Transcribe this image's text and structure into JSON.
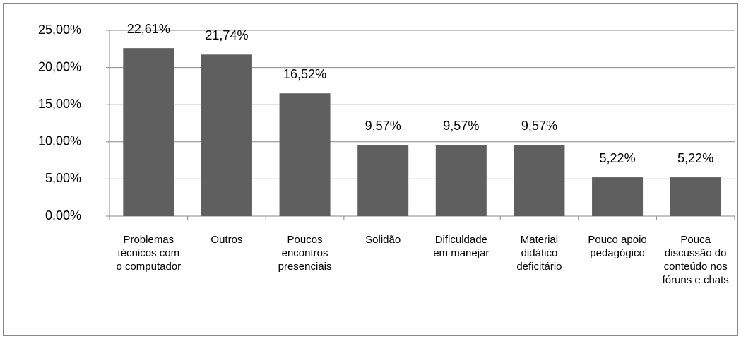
{
  "chart_data": {
    "type": "bar",
    "categories": [
      "Problemas técnicos com o computador",
      "Outros",
      "Poucos encontros presenciais",
      "Solidão",
      "Dificuldade em manejar",
      "Material didático deficitário",
      "Pouco apoio pedagógico",
      "Pouca discussão do conteúdo nos fóruns e chats"
    ],
    "values": [
      22.61,
      21.74,
      16.52,
      9.57,
      9.57,
      9.57,
      5.22,
      5.22
    ],
    "value_labels": [
      "22,61%",
      "21,74%",
      "16,52%",
      "9,57%",
      "9,57%",
      "9,57%",
      "5,22%",
      "5,22%"
    ],
    "color": "#5f5f5f",
    "ylim": [
      0,
      25
    ],
    "yticks": [
      {
        "value": 0,
        "label": "0,00%"
      },
      {
        "value": 5,
        "label": "5,00%"
      },
      {
        "value": 10,
        "label": "10,00%"
      },
      {
        "value": 15,
        "label": "15,00%"
      },
      {
        "value": 20,
        "label": "20,00%"
      },
      {
        "value": 25,
        "label": "25,00%"
      }
    ],
    "grid": true
  }
}
